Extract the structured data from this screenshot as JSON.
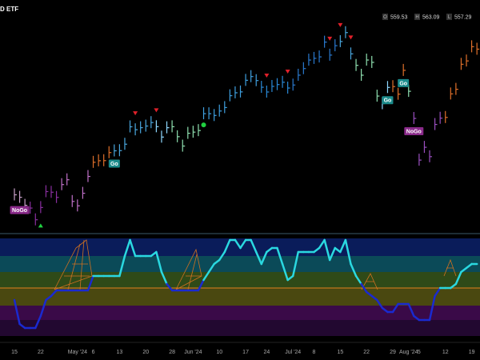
{
  "chart_data": [
    {
      "type": "pricebar",
      "title": "D ETF",
      "quote": [
        {
          "label": "O",
          "value": 559.53
        },
        {
          "label": "H",
          "value": 563.09
        },
        {
          "label": "L",
          "value": 557.29
        }
      ],
      "categories": [
        "15",
        null,
        null,
        null,
        null,
        "22",
        null,
        null,
        null,
        null,
        null,
        null,
        "May '24",
        null,
        null,
        "6",
        null,
        null,
        null,
        null,
        "13",
        null,
        null,
        null,
        null,
        "20",
        null,
        null,
        null,
        null,
        "28",
        null,
        null,
        null,
        "Jun '24",
        null,
        null,
        null,
        null,
        "10",
        null,
        null,
        null,
        null,
        "17",
        null,
        null,
        null,
        "24",
        null,
        null,
        null,
        null,
        "Jul '24",
        null,
        null,
        null,
        "8",
        null,
        null,
        null,
        null,
        "15",
        null,
        null,
        null,
        null,
        "22",
        null,
        null,
        null,
        null,
        "29",
        null,
        null,
        "Aug '24",
        null,
        "5",
        null,
        null,
        null,
        null,
        "12",
        null,
        null,
        null,
        null,
        "19",
        null
      ],
      "values": [
        504.45,
        503.53,
        500.55,
        499.52,
        495.16,
        499.72,
        505.65,
        505.41,
        503.49,
        508.26,
        510.06,
        501.98,
        500.35,
        505.03,
        511.29,
        516.57,
        517.14,
        517.19,
        520.17,
        520.84,
        520.91,
        523.3,
        529.78,
        528.69,
        529.45,
        530.06,
        531.36,
        529.83,
        525.96,
        529.44,
        529.81,
        526.1,
        522.61,
        527.37,
        527.8,
        528.39,
        534.67,
        534.66,
        534.01,
        535.66,
        536.95,
        541.36,
        542.45,
        542.78,
        547.1,
        548.49,
        547,
        544.51,
        542.74,
        544.83,
        545.51,
        546.37,
        544.22,
        545.34,
        549.01,
        551.46,
        554.64,
        555.28,
        555.82,
        561.32,
        556.48,
        559.99,
        561.53,
        564.86,
        556.94,
        552.66,
        548.99,
        554.65,
        553.78,
        541.23,
        538.41,
        544.44,
        544.76,
        541.94,
        550.81,
        543.01,
        532.9,
        517.38,
        522.15,
        518.66,
        530.65,
        532.99,
        533.27,
        542.04,
        543.75,
        553.07,
        554.31,
        559.61,
        558.7
      ],
      "colors": [
        "#c8a0c8",
        "#c8a0c8",
        "#c8a0c8",
        "#8a2fa0",
        "#8a2fa0",
        "#8a2fa0",
        "#8a2fa0",
        "#8a2fa0",
        "#8a2fa0",
        "#c070c8",
        "#c070c8",
        "#c070c8",
        "#c070c8",
        "#c070c8",
        "#c070c8",
        "#e0702a",
        "#e0702a",
        "#e0702a",
        "#e0702a",
        "#4aa8e0",
        "#4aa8e0",
        "#4aa8e0",
        "#4aa8e0",
        "#4aa8e0",
        "#4aa8e0",
        "#4aa8e0",
        "#4aa8e0",
        "#8fd8ff",
        "#8fd8ff",
        "#8fd8ff",
        "#8fe0b0",
        "#8fe0b0",
        "#8fe0b0",
        "#8fe0b0",
        "#8fe0b0",
        "#8fe0b0",
        "#3fa0e0",
        "#3fa0e0",
        "#3fa0e0",
        "#3fa0e0",
        "#3fa0e0",
        "#3fa0e0",
        "#3fa0e0",
        "#3fa0e0",
        "#3fa0e0",
        "#3fa0e0",
        "#3fa0e0",
        "#2a8ad8",
        "#2a8ad8",
        "#2a8ad8",
        "#2a8ad8",
        "#2a8ad8",
        "#2a8ad8",
        "#2a7ad0",
        "#2a7ad0",
        "#2a7ad0",
        "#2a7ad0",
        "#2a7ad0",
        "#2a7ad0",
        "#2a7ad0",
        "#2a7ad0",
        "#2a7ad0",
        "#4aa8e0",
        "#4aa8e0",
        "#4aa8e0",
        "#8fe0b0",
        "#8fe0b0",
        "#8fe0b0",
        "#8fe0b0",
        "#8fe0b0",
        "#8fd8ff",
        "#8fd8ff",
        "#e0702a",
        "#e0702a",
        "#e0702a",
        "#8fe0b0",
        "#9a4fc0",
        "#9a4fc0",
        "#9a4fc0",
        "#9a4fc0",
        "#9a4fc0",
        "#9a4fc0",
        "#e0702a",
        "#e0702a",
        "#e0702a",
        "#e0702a",
        "#e0702a",
        "#e0702a",
        "#e0702a"
      ],
      "ylim": [
        490.6,
        577
      ],
      "down_signals": [
        23,
        27,
        48,
        52,
        60,
        62,
        64
      ],
      "down_color": "#e0202a",
      "up_signals": [
        5
      ],
      "up_color": "#20d040",
      "dot_signals": [
        36
      ],
      "dot_color": "#20d040",
      "labels": [
        {
          "text": "NoGo",
          "index": 1,
          "color": "#8a2a8a"
        },
        {
          "text": "Go",
          "index": 19,
          "color": "#1a8a8a"
        },
        {
          "text": "Go",
          "index": 71,
          "color": "#1a8a8a"
        },
        {
          "text": "Go",
          "index": 74,
          "color": "#1a8a8a"
        },
        {
          "text": "NoGo",
          "index": 76,
          "color": "#8a2a8a"
        }
      ]
    },
    {
      "type": "line",
      "values": [
        -1.5,
        -4.5,
        -5,
        -5,
        -5,
        -3.5,
        -1.5,
        -1,
        -0.3,
        -0.3,
        -0.3,
        -0.3,
        -0.3,
        -0.3,
        -0.3,
        1.5,
        1.5,
        1.5,
        1.5,
        1.5,
        1.5,
        4,
        6,
        4,
        4,
        4,
        4,
        4.5,
        2,
        0.5,
        -0.3,
        -0.3,
        -0.3,
        -0.3,
        -0.3,
        -0.3,
        1,
        2,
        3,
        3.5,
        4.5,
        6,
        6,
        5,
        6,
        6,
        4.5,
        3,
        4.5,
        5,
        5,
        3,
        1,
        1.5,
        4.5,
        4.5,
        4.5,
        4.5,
        5,
        6,
        3.5,
        5,
        4.5,
        6,
        3,
        1.5,
        0.5,
        -0.5,
        -1,
        -1.5,
        -2.5,
        -3,
        -3,
        -2,
        -2,
        -2,
        -3.5,
        -4,
        -4,
        -4,
        -1,
        0,
        0,
        0,
        0.5,
        2,
        2.5,
        3,
        3
      ],
      "color": "#2ad8e0",
      "negative_color": "#1a2ad0",
      "zero_line_color": "#e08020",
      "ylim": [
        -6,
        6
      ]
    }
  ]
}
